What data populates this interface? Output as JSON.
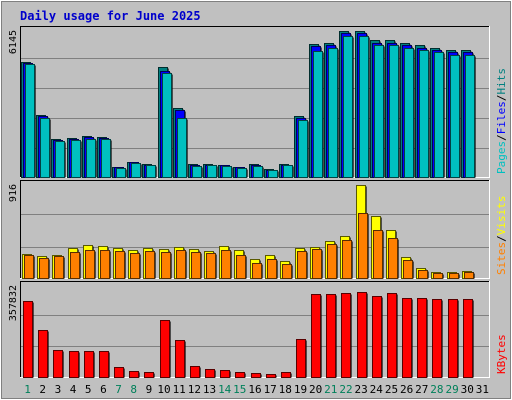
{
  "window": {
    "title": "Daily usage for June 2025",
    "background": "#c0c0c0",
    "panel_bg": "#c0c0c0",
    "grid_color": "#808080",
    "title_color": "#0000cc"
  },
  "chart_data": [
    {
      "type": "bar",
      "panel": "hits-files-pages",
      "title": "Daily usage for June 2025",
      "ymax_label": "6145",
      "ylim": [
        0,
        6145
      ],
      "grid": true,
      "categories": [
        "1",
        "2",
        "3",
        "4",
        "5",
        "6",
        "7",
        "8",
        "9",
        "10",
        "11",
        "12",
        "13",
        "14",
        "15",
        "16",
        "17",
        "18",
        "19",
        "20",
        "21",
        "22",
        "23",
        "24",
        "25",
        "26",
        "27",
        "28",
        "29",
        "30",
        "31"
      ],
      "legend": [
        {
          "name": "Hits",
          "color": "#008080"
        },
        {
          "name": "Files",
          "color": "#0000ff"
        },
        {
          "name": "Pages",
          "color": "#00c0c0"
        }
      ],
      "legend_sep": "/",
      "series": [
        {
          "name": "Hits",
          "color": "#008080",
          "values": [
            4850,
            2620,
            1620,
            1650,
            1720,
            1690,
            420,
            650,
            560,
            4620,
            2920,
            530,
            540,
            520,
            420,
            530,
            330,
            550,
            2550,
            5600,
            5650,
            6145,
            6145,
            5750,
            5750,
            5650,
            5550,
            5450,
            5350,
            5330,
            0
          ]
        },
        {
          "name": "Files",
          "color": "#0000ff",
          "values": [
            4800,
            2560,
            1570,
            1600,
            1670,
            1650,
            400,
            620,
            520,
            4460,
            2800,
            500,
            520,
            490,
            400,
            500,
            310,
            520,
            2470,
            5500,
            5550,
            6050,
            6050,
            5650,
            5650,
            5550,
            5450,
            5350,
            5250,
            5250,
            0
          ]
        },
        {
          "name": "Pages",
          "color": "#00c0c0",
          "values": [
            4750,
            2500,
            1520,
            1560,
            1620,
            1600,
            380,
            590,
            490,
            4380,
            2500,
            470,
            490,
            460,
            370,
            480,
            290,
            490,
            2380,
            5300,
            5450,
            5950,
            5950,
            5550,
            5550,
            5450,
            5350,
            5250,
            5150,
            5150,
            0
          ]
        }
      ]
    },
    {
      "type": "bar",
      "panel": "visits-sites",
      "ymax_label": "916",
      "ylim": [
        0,
        916
      ],
      "grid": true,
      "categories": [
        "1",
        "2",
        "3",
        "4",
        "5",
        "6",
        "7",
        "8",
        "9",
        "10",
        "11",
        "12",
        "13",
        "14",
        "15",
        "16",
        "17",
        "18",
        "19",
        "20",
        "21",
        "22",
        "23",
        "24",
        "25",
        "26",
        "27",
        "28",
        "29",
        "30",
        "31"
      ],
      "legend": [
        {
          "name": "Visits",
          "color": "#ffff00"
        },
        {
          "name": "Sites",
          "color": "#ff8000"
        }
      ],
      "legend_sep": "/",
      "series": [
        {
          "name": "Visits",
          "color": "#ffff00",
          "values": [
            236,
            216,
            226,
            296,
            326,
            316,
            296,
            276,
            296,
            286,
            306,
            286,
            266,
            316,
            276,
            186,
            226,
            166,
            296,
            306,
            366,
            415,
            916,
            606,
            476,
            206,
            96,
            56,
            56,
            66,
            0
          ]
        },
        {
          "name": "Sites",
          "color": "#ff8000",
          "values": [
            226,
            196,
            216,
            256,
            276,
            276,
            266,
            246,
            266,
            256,
            276,
            256,
            246,
            276,
            226,
            146,
            186,
            136,
            266,
            286,
            336,
            375,
            636,
            476,
            396,
            176,
            76,
            46,
            46,
            56,
            0
          ]
        }
      ]
    },
    {
      "type": "bar",
      "panel": "kbytes",
      "ymax_label": "357832",
      "ylim": [
        0,
        357832
      ],
      "grid": true,
      "categories": [
        "1",
        "2",
        "3",
        "4",
        "5",
        "6",
        "7",
        "8",
        "9",
        "10",
        "11",
        "12",
        "13",
        "14",
        "15",
        "16",
        "17",
        "18",
        "19",
        "20",
        "21",
        "22",
        "23",
        "24",
        "25",
        "26",
        "27",
        "28",
        "29",
        "30",
        "31"
      ],
      "legend": [
        {
          "name": "KBytes",
          "color": "#ff0000"
        }
      ],
      "legend_sep": "/",
      "series": [
        {
          "name": "KBytes",
          "color": "#ff0000",
          "values": [
            298000,
            186000,
            106000,
            104000,
            104000,
            104000,
            38000,
            24000,
            21000,
            226000,
            146000,
            44000,
            31000,
            29000,
            18000,
            16000,
            12000,
            21000,
            148000,
            326000,
            326000,
            330000,
            333000,
            318000,
            330000,
            311000,
            310000,
            306000,
            306000,
            306000,
            0
          ]
        }
      ]
    }
  ],
  "x_axis": {
    "day_labels": [
      "1",
      "2",
      "3",
      "4",
      "5",
      "6",
      "7",
      "8",
      "9",
      "10",
      "11",
      "12",
      "13",
      "14",
      "15",
      "16",
      "17",
      "18",
      "19",
      "20",
      "21",
      "22",
      "23",
      "24",
      "25",
      "26",
      "27",
      "28",
      "29",
      "30",
      "31"
    ],
    "weekend_days": [
      1,
      7,
      8,
      14,
      15,
      21,
      22,
      28,
      29
    ],
    "weekday_color": "#000000",
    "weekend_color": "#00805a"
  }
}
